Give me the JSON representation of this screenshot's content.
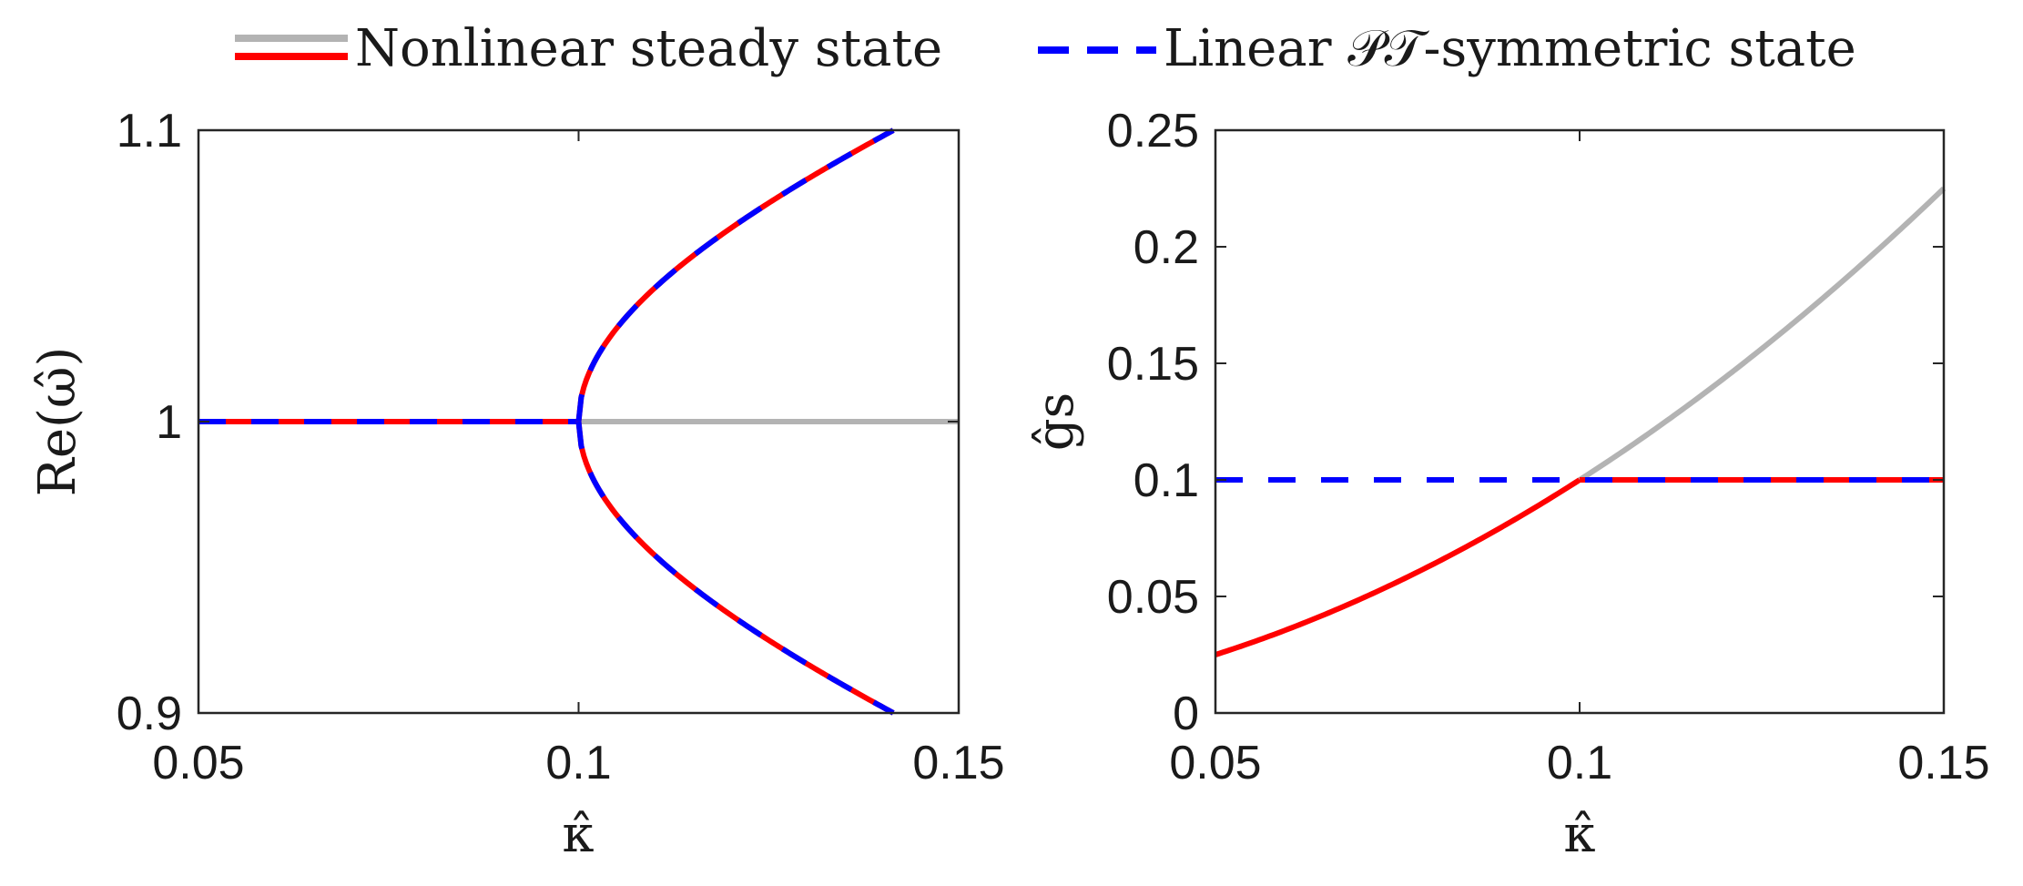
{
  "legend": {
    "items": [
      {
        "label": "Nonlinear steady state"
      },
      {
        "label": "Linear 𝒫𝒯-symmetric state"
      }
    ]
  },
  "colors": {
    "gray": "#b3b3b3",
    "red": "#ff0000",
    "blue": "#0000ff",
    "axis": "#262626"
  },
  "chart_data": [
    {
      "type": "line",
      "title": "",
      "xlabel": "κ̂",
      "ylabel": "Re(ω̂)",
      "xlim": [
        0.05,
        0.15
      ],
      "ylim": [
        0.9,
        1.1
      ],
      "xticks": [
        0.05,
        0.1,
        0.15
      ],
      "xtick_labels": [
        "0.05",
        "0.1",
        "0.15"
      ],
      "yticks": [
        0.9,
        1.0,
        1.1
      ],
      "ytick_labels": [
        "0.9",
        "1",
        "1.1"
      ],
      "kappa_c": 0.1,
      "kappa_max": 0.1414,
      "series": [
        {
          "name": "Nonlinear steady state (unstable branch, gray)",
          "x": [
            0.1,
            0.15
          ],
          "y": [
            1.0,
            1.0
          ]
        },
        {
          "name": "Nonlinear steady state (red) / Linear PT-symmetric state (blue dashed), below threshold",
          "x": [
            0.05,
            0.1
          ],
          "y": [
            1.0,
            1.0
          ]
        },
        {
          "name": "Nonlinear steady state / Linear PT-symmetric state, upper branch",
          "formula": "1 + sqrt(kappa^2 - 0.01)",
          "x": [
            0.1,
            0.11,
            0.12,
            0.13,
            0.14,
            0.1414
          ],
          "y": [
            1.0,
            1.0458,
            1.0663,
            1.0831,
            1.098,
            1.1
          ]
        },
        {
          "name": "Nonlinear steady state / Linear PT-symmetric state, lower branch",
          "formula": "1 - sqrt(kappa^2 - 0.01)",
          "x": [
            0.1,
            0.11,
            0.12,
            0.13,
            0.14,
            0.1414
          ],
          "y": [
            1.0,
            0.9542,
            0.9337,
            0.9169,
            0.902,
            0.9
          ]
        }
      ]
    },
    {
      "type": "line",
      "title": "",
      "xlabel": "κ̂",
      "ylabel": "ĝs",
      "xlim": [
        0.05,
        0.15
      ],
      "ylim": [
        0,
        0.25
      ],
      "xticks": [
        0.05,
        0.1,
        0.15
      ],
      "xtick_labels": [
        "0.05",
        "0.1",
        "0.15"
      ],
      "yticks": [
        0,
        0.05,
        0.1,
        0.15,
        0.2,
        0.25
      ],
      "ytick_labels": [
        "0",
        "0.05",
        "0.1",
        "0.15",
        "0.2",
        "0.25"
      ],
      "series": [
        {
          "name": "Nonlinear steady state (red)",
          "formula": "10 * kappa^2",
          "x": [
            0.05,
            0.06,
            0.07,
            0.08,
            0.09,
            0.1
          ],
          "y": [
            0.025,
            0.036,
            0.049,
            0.064,
            0.081,
            0.1
          ]
        },
        {
          "name": "Nonlinear steady state (gray)",
          "formula": "10 * kappa^2",
          "x": [
            0.1,
            0.11,
            0.12,
            0.13,
            0.14,
            0.15
          ],
          "y": [
            0.1,
            0.121,
            0.144,
            0.169,
            0.196,
            0.225
          ]
        },
        {
          "name": "Linear PT-symmetric state (blue dashed)",
          "x": [
            0.05,
            0.15
          ],
          "y": [
            0.1,
            0.1
          ]
        },
        {
          "name": "Nonlinear steady state (red, above threshold)",
          "x": [
            0.1,
            0.15
          ],
          "y": [
            0.1,
            0.1
          ]
        }
      ]
    }
  ]
}
